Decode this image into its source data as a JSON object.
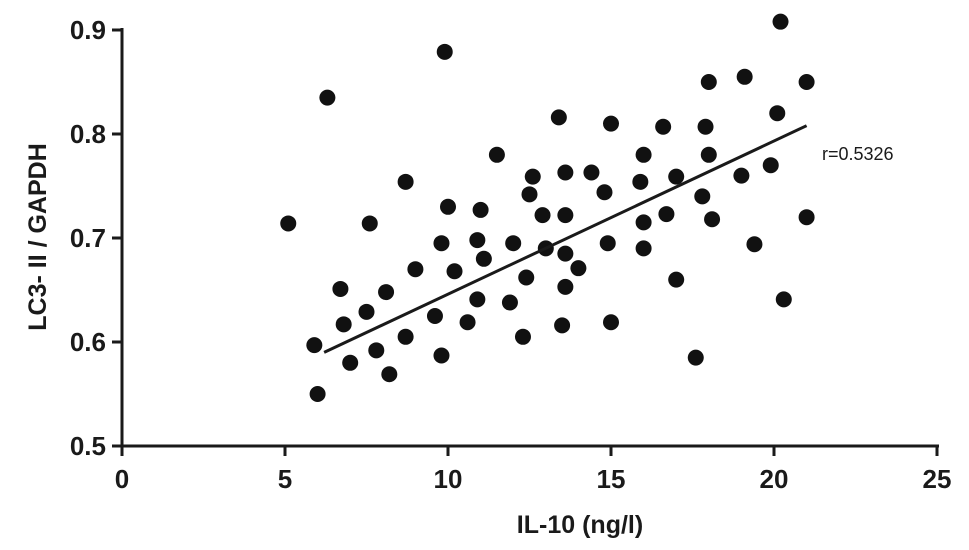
{
  "chart_data": {
    "type": "scatter",
    "title": "",
    "xlabel": "IL-10 (ng/l)",
    "ylabel": "LC3- II / GAPDH",
    "xlim": [
      0,
      25
    ],
    "ylim": [
      0.5,
      0.9
    ],
    "x_ticks": [
      0,
      5,
      10,
      15,
      20,
      25
    ],
    "y_ticks": [
      0.5,
      0.6,
      0.7,
      0.8,
      0.9
    ],
    "y_tick_labels": [
      "0.5",
      "0.6",
      "0.7",
      "0.8",
      "0.9"
    ],
    "annotation": "r=0.5326",
    "grid": false,
    "regression_line": {
      "x": [
        6.2,
        21.0
      ],
      "y": [
        0.59,
        0.808
      ]
    },
    "points": [
      {
        "x": 5.1,
        "y": 0.714
      },
      {
        "x": 5.9,
        "y": 0.597
      },
      {
        "x": 6.0,
        "y": 0.55
      },
      {
        "x": 6.3,
        "y": 0.835
      },
      {
        "x": 6.7,
        "y": 0.651
      },
      {
        "x": 6.8,
        "y": 0.617
      },
      {
        "x": 7.0,
        "y": 0.58
      },
      {
        "x": 7.5,
        "y": 0.629
      },
      {
        "x": 7.6,
        "y": 0.714
      },
      {
        "x": 7.8,
        "y": 0.592
      },
      {
        "x": 8.1,
        "y": 0.648
      },
      {
        "x": 8.2,
        "y": 0.569
      },
      {
        "x": 8.7,
        "y": 0.605
      },
      {
        "x": 8.7,
        "y": 0.754
      },
      {
        "x": 9.0,
        "y": 0.67
      },
      {
        "x": 9.6,
        "y": 0.625
      },
      {
        "x": 9.8,
        "y": 0.587
      },
      {
        "x": 9.8,
        "y": 0.695
      },
      {
        "x": 9.9,
        "y": 0.879
      },
      {
        "x": 10.0,
        "y": 0.73
      },
      {
        "x": 10.2,
        "y": 0.668
      },
      {
        "x": 10.6,
        "y": 0.619
      },
      {
        "x": 10.9,
        "y": 0.641
      },
      {
        "x": 10.9,
        "y": 0.698
      },
      {
        "x": 11.0,
        "y": 0.727
      },
      {
        "x": 11.1,
        "y": 0.68
      },
      {
        "x": 11.5,
        "y": 0.78
      },
      {
        "x": 11.9,
        "y": 0.638
      },
      {
        "x": 12.0,
        "y": 0.695
      },
      {
        "x": 12.3,
        "y": 0.605
      },
      {
        "x": 12.4,
        "y": 0.662
      },
      {
        "x": 12.5,
        "y": 0.742
      },
      {
        "x": 12.6,
        "y": 0.759
      },
      {
        "x": 12.9,
        "y": 0.722
      },
      {
        "x": 13.0,
        "y": 0.69
      },
      {
        "x": 13.4,
        "y": 0.816
      },
      {
        "x": 13.5,
        "y": 0.616
      },
      {
        "x": 13.6,
        "y": 0.653
      },
      {
        "x": 13.6,
        "y": 0.685
      },
      {
        "x": 13.6,
        "y": 0.722
      },
      {
        "x": 13.6,
        "y": 0.763
      },
      {
        "x": 14.0,
        "y": 0.671
      },
      {
        "x": 14.4,
        "y": 0.763
      },
      {
        "x": 14.8,
        "y": 0.744
      },
      {
        "x": 14.9,
        "y": 0.695
      },
      {
        "x": 15.0,
        "y": 0.619
      },
      {
        "x": 15.0,
        "y": 0.81
      },
      {
        "x": 15.9,
        "y": 0.754
      },
      {
        "x": 16.0,
        "y": 0.78
      },
      {
        "x": 16.0,
        "y": 0.715
      },
      {
        "x": 16.0,
        "y": 0.69
      },
      {
        "x": 16.6,
        "y": 0.807
      },
      {
        "x": 16.7,
        "y": 0.723
      },
      {
        "x": 17.0,
        "y": 0.759
      },
      {
        "x": 17.0,
        "y": 0.66
      },
      {
        "x": 17.6,
        "y": 0.585
      },
      {
        "x": 17.8,
        "y": 0.74
      },
      {
        "x": 17.9,
        "y": 0.807
      },
      {
        "x": 18.0,
        "y": 0.85
      },
      {
        "x": 18.0,
        "y": 0.78
      },
      {
        "x": 18.1,
        "y": 0.718
      },
      {
        "x": 19.0,
        "y": 0.76
      },
      {
        "x": 19.1,
        "y": 0.855
      },
      {
        "x": 19.4,
        "y": 0.694
      },
      {
        "x": 19.9,
        "y": 0.77
      },
      {
        "x": 20.1,
        "y": 0.82
      },
      {
        "x": 20.2,
        "y": 0.908
      },
      {
        "x": 20.3,
        "y": 0.641
      },
      {
        "x": 21.0,
        "y": 0.72
      },
      {
        "x": 21.0,
        "y": 0.85
      }
    ],
    "colors": {
      "points": "#111111",
      "line": "#1a1a1a",
      "axis": "#1a1a1a"
    }
  }
}
